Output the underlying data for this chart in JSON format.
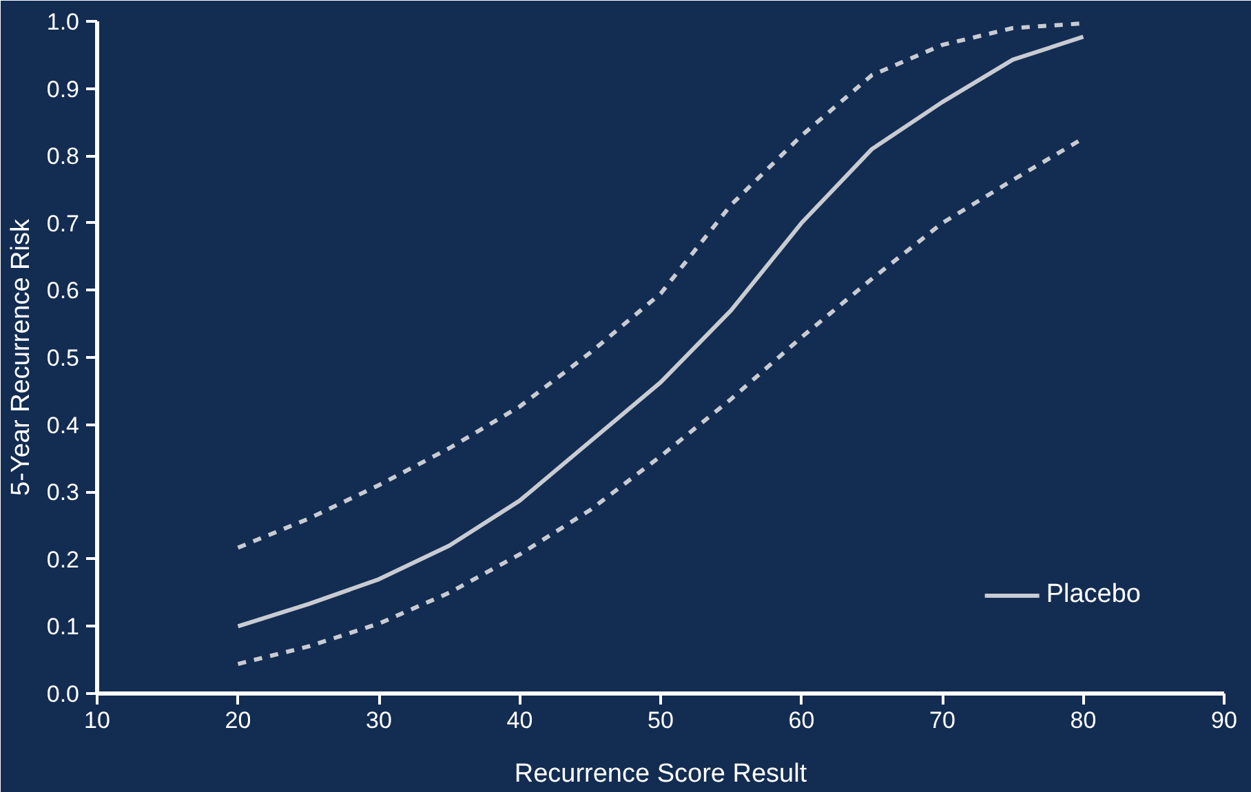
{
  "chart_data": {
    "type": "line",
    "xlabel": "Recurrence Score Result",
    "ylabel": "5-Year Recurrence Risk",
    "xlim": [
      10,
      90
    ],
    "xticks": [
      10,
      20,
      30,
      40,
      50,
      60,
      70,
      80,
      90
    ],
    "ylim": [
      0,
      1
    ],
    "yticks": [
      {
        "value": 0,
        "label": "0.0"
      },
      0.1,
      0.2,
      0.3,
      0.4,
      0.5,
      0.6,
      0.7,
      0.8,
      0.9,
      {
        "value": 1,
        "label": "1.0"
      }
    ],
    "x": [
      20,
      25,
      30,
      35,
      40,
      45,
      50,
      55,
      60,
      65,
      70,
      75,
      80
    ],
    "series": [
      {
        "name": "Placebo",
        "color": "#c8ccd2",
        "line_style": "solid",
        "values": [
          0.1,
          0.133,
          0.17,
          0.22,
          0.287,
          0.375,
          0.463,
          0.57,
          0.7,
          0.81,
          0.88,
          0.943,
          0.977
        ]
      },
      {
        "color": "#c8ccd2",
        "line_style": "dashed",
        "values": [
          0.217,
          0.26,
          0.31,
          0.365,
          0.427,
          0.507,
          0.595,
          0.727,
          0.83,
          0.92,
          0.965,
          0.99,
          0.997
        ]
      },
      {
        "color": "#c8ccd2",
        "line_style": "dashed",
        "values": [
          0.044,
          0.07,
          0.104,
          0.15,
          0.207,
          0.273,
          0.353,
          0.438,
          0.53,
          0.617,
          0.7,
          0.764,
          0.826
        ]
      }
    ],
    "grid": false,
    "legend": "bottom right",
    "marker": "none"
  }
}
